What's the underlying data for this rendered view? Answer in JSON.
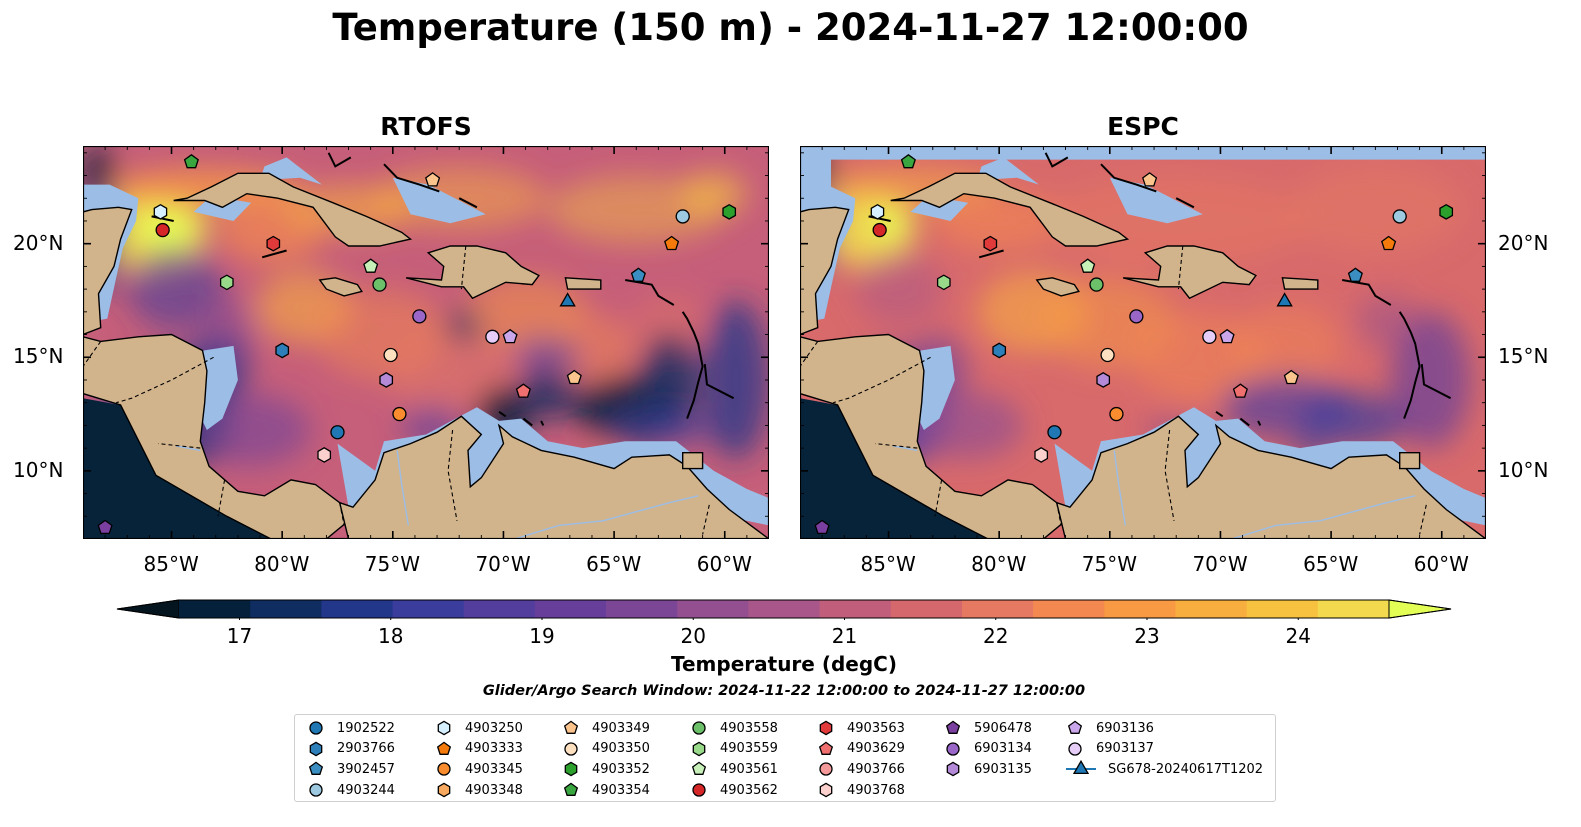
{
  "title": "Temperature (150 m) - 2024-11-27 12:00:00",
  "panels": [
    {
      "id": "rtofs",
      "title": "RTOFS",
      "left_offset": 0
    },
    {
      "id": "espc",
      "title": "ESPC",
      "left_offset": 717
    }
  ],
  "map_extent": {
    "lon_min": -89,
    "lon_max": -58,
    "lat_min": 7,
    "lat_max": 24.3
  },
  "longitude_ticks": [
    {
      "lon": -85,
      "label": "85°W"
    },
    {
      "lon": -80,
      "label": "80°W"
    },
    {
      "lon": -75,
      "label": "75°W"
    },
    {
      "lon": -70,
      "label": "70°W"
    },
    {
      "lon": -65,
      "label": "65°W"
    },
    {
      "lon": -60,
      "label": "60°W"
    }
  ],
  "latitude_ticks": [
    {
      "lat": 20,
      "label": "20°N"
    },
    {
      "lat": 15,
      "label": "15°N"
    },
    {
      "lat": 10,
      "label": "10°N"
    }
  ],
  "colorbar": {
    "label": "Temperature (degC)",
    "min": 16.6,
    "max": 24.6,
    "ticks": [
      17,
      18,
      19,
      20,
      21,
      22,
      23,
      24
    ],
    "colors": [
      "#05203a",
      "#0f2d60",
      "#22368a",
      "#3a3d9c",
      "#533e9e",
      "#673f9a",
      "#7c4696",
      "#934f90",
      "#a9568a",
      "#c05e7c",
      "#d4686d",
      "#e57961",
      "#f38950",
      "#f89a43",
      "#f8ad3f",
      "#f6c23f",
      "#f2d94e"
    ],
    "extend_low": "#04151f",
    "extend_high": "#e3ff55"
  },
  "colors": {
    "land": "#d2b48c",
    "shallow_water": "#9cbde6",
    "deep_cold": "#06233a",
    "coast": "#000000"
  },
  "search_window": "Glider/Argo Search Window: 2024-11-22 12:00:00 to 2024-11-27 12:00:00",
  "legend_columns": [
    [
      {
        "id": "1902522",
        "color": "#1f77b4",
        "marker": "circle"
      },
      {
        "id": "2903766",
        "color": "#2c7fb8",
        "marker": "hexagon"
      },
      {
        "id": "3902457",
        "color": "#3b8ec2",
        "marker": "pentagon"
      },
      {
        "id": "4903244",
        "color": "#9ecae1",
        "marker": "circle"
      }
    ],
    [
      {
        "id": "4903250",
        "color": "#d6f0ff",
        "marker": "hexagon"
      },
      {
        "id": "4903333",
        "color": "#f47b0b",
        "marker": "pentagon"
      },
      {
        "id": "4903345",
        "color": "#f98c2f",
        "marker": "circle"
      },
      {
        "id": "4903348",
        "color": "#f8a960",
        "marker": "hexagon"
      }
    ],
    [
      {
        "id": "4903349",
        "color": "#fcc48d",
        "marker": "pentagon"
      },
      {
        "id": "4903350",
        "color": "#fde0c0",
        "marker": "circle"
      },
      {
        "id": "4903352",
        "color": "#2ca02c",
        "marker": "hexagon"
      },
      {
        "id": "4903354",
        "color": "#3aa640",
        "marker": "pentagon"
      }
    ],
    [
      {
        "id": "4903558",
        "color": "#6cc06a",
        "marker": "circle"
      },
      {
        "id": "4903559",
        "color": "#98d98a",
        "marker": "hexagon"
      },
      {
        "id": "4903561",
        "color": "#c7f0b8",
        "marker": "pentagon"
      },
      {
        "id": "4903562",
        "color": "#d62728",
        "marker": "circle"
      }
    ],
    [
      {
        "id": "4903563",
        "color": "#e03a3a",
        "marker": "hexagon"
      },
      {
        "id": "4903629",
        "color": "#f07070",
        "marker": "pentagon"
      },
      {
        "id": "4903766",
        "color": "#f59a9a",
        "marker": "circle"
      },
      {
        "id": "4903768",
        "color": "#fcd0cc",
        "marker": "hexagon"
      }
    ],
    [
      {
        "id": "5906478",
        "color": "#7b3fa0",
        "marker": "pentagon"
      },
      {
        "id": "6903134",
        "color": "#9a66c8",
        "marker": "circle"
      },
      {
        "id": "6903135",
        "color": "#b48ad8",
        "marker": "hexagon"
      }
    ],
    [
      {
        "id": "6903136",
        "color": "#caa6ea",
        "marker": "pentagon"
      },
      {
        "id": "6903137",
        "color": "#e6cdf7",
        "marker": "circle"
      },
      {
        "id": "SG678-20240617T1202",
        "color": "#1f77b4",
        "marker": "triangle"
      }
    ]
  ],
  "observations": [
    {
      "id": "1902522",
      "lon": -77.5,
      "lat": 11.7
    },
    {
      "id": "2903766",
      "lon": -80.0,
      "lat": 15.3
    },
    {
      "id": "3902457",
      "lon": -63.9,
      "lat": 18.6
    },
    {
      "id": "4903244",
      "lon": -61.9,
      "lat": 21.2
    },
    {
      "id": "4903250",
      "lon": -85.5,
      "lat": 21.4
    },
    {
      "id": "4903333",
      "lon": -62.4,
      "lat": 20.0
    },
    {
      "id": "4903345",
      "lon": -74.7,
      "lat": 12.5
    },
    {
      "id": "4903349",
      "lon": -73.2,
      "lat": 22.8
    },
    {
      "id": "4903349",
      "lon": -66.8,
      "lat": 14.1
    },
    {
      "id": "4903350",
      "lon": -75.1,
      "lat": 15.1
    },
    {
      "id": "4903352",
      "lon": -59.8,
      "lat": 21.4
    },
    {
      "id": "4903354",
      "lon": -84.1,
      "lat": 23.6
    },
    {
      "id": "4903558",
      "lon": -75.6,
      "lat": 18.2
    },
    {
      "id": "4903559",
      "lon": -82.5,
      "lat": 18.3
    },
    {
      "id": "4903561",
      "lon": -76.0,
      "lat": 19.0
    },
    {
      "id": "4903562",
      "lon": -85.4,
      "lat": 20.6
    },
    {
      "id": "4903563",
      "lon": -80.4,
      "lat": 20.0
    },
    {
      "id": "4903629",
      "lon": -69.1,
      "lat": 13.5
    },
    {
      "id": "4903768",
      "lon": -78.1,
      "lat": 10.7
    },
    {
      "id": "5906478",
      "lon": -88.0,
      "lat": 7.5
    },
    {
      "id": "6903134",
      "lon": -73.8,
      "lat": 16.8
    },
    {
      "id": "6903135",
      "lon": -75.3,
      "lat": 14.0
    },
    {
      "id": "6903136",
      "lon": -69.7,
      "lat": 15.9
    },
    {
      "id": "6903137",
      "lon": -70.5,
      "lat": 15.9
    },
    {
      "id": "SG678-20240617T1202",
      "lon": -67.1,
      "lat": 17.5
    }
  ]
}
